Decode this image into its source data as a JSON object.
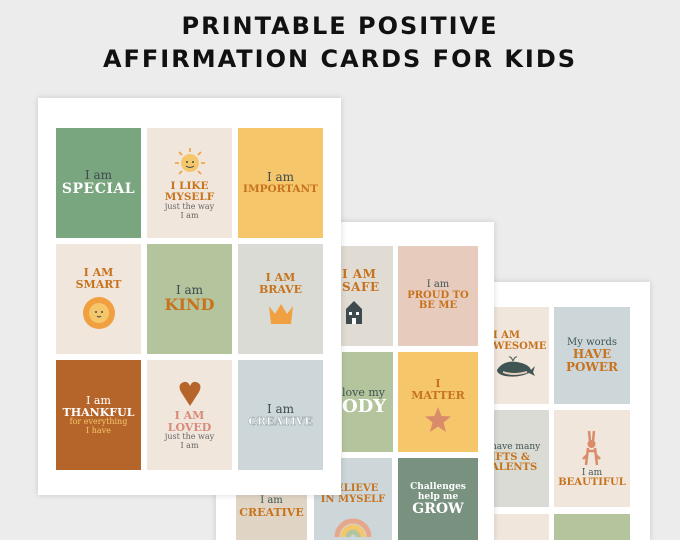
{
  "title": {
    "line1": "PRINTABLE POSITIVE",
    "line2": "AFFIRMATION CARDS FOR KIDS"
  },
  "sheet1": {
    "special": {
      "a": "I am",
      "b": "SPECIAL"
    },
    "like": {
      "a": "I LIKE",
      "b": "MYSELF",
      "c": "just the way",
      "d": "I am"
    },
    "important": {
      "a": "I am",
      "b": "IMPORTANT"
    },
    "smart": {
      "a": "I AM",
      "b": "SMART"
    },
    "kind": {
      "a": "I am",
      "b": "KIND"
    },
    "brave": {
      "a": "I AM",
      "b": "BRAVE"
    },
    "thankful": {
      "a": "I am",
      "b": "THANKFUL",
      "c": "for everything",
      "d": "I have"
    },
    "loved": {
      "a": "I AM",
      "b": "LOVED",
      "c": "just the way",
      "d": "I am"
    },
    "creative": {
      "a": "I am",
      "b": "CREATIVE"
    }
  },
  "sheet2": {
    "safe": {
      "a": "I AM",
      "b": "SAFE"
    },
    "proud": {
      "a": "I am",
      "b": "PROUD TO",
      "c": "BE ME"
    },
    "love": {
      "a": "love my",
      "b": "ODY"
    },
    "matter": {
      "a": "I",
      "b": "MATTER"
    },
    "creative": {
      "a": "I am",
      "b": "CREATIVE"
    },
    "believe": {
      "a": "BELIEVE",
      "b": "IN MYSELF"
    },
    "grow": {
      "a": "Challenges",
      "b": "help me",
      "c": "GROW"
    }
  },
  "sheet3": {
    "awesome": {
      "a": "I AM",
      "b": "WESOME"
    },
    "power": {
      "a": "My words",
      "b": "HAVE",
      "c": "POWER"
    },
    "gifts": {
      "a": "have many",
      "b": "IFTS &",
      "c": "ALENTS"
    },
    "beautiful": {
      "a": "I am",
      "b": "BEAUTIFUL"
    }
  },
  "colors": {
    "green": "#79a67f",
    "sand": "#f0e6dc",
    "yellow": "#f6c66b",
    "sage": "#b4c49c",
    "grey": "#d9dbd4",
    "rust": "#b5652a",
    "blue": "#cdd7da",
    "pink": "#e7ccbd",
    "orange": "#c7731e"
  }
}
